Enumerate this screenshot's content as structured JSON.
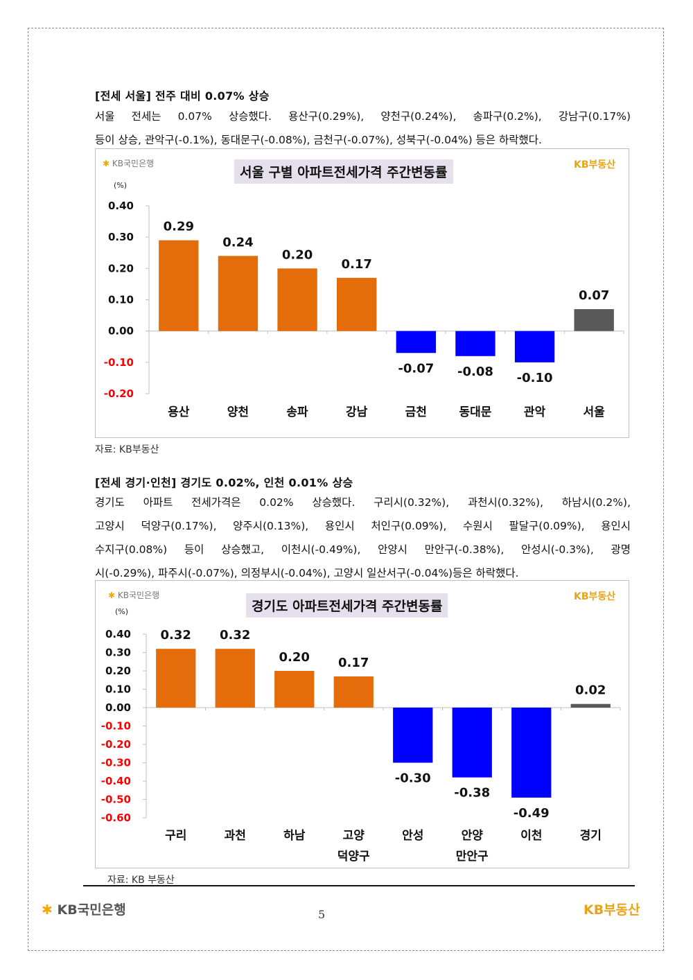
{
  "seoul": {
    "heading": "[전세 서울] 전주 대비 0.07% 상승",
    "lines": [
      "서울 전세는 0.07% 상승했다. 용산구(0.29%), 양천구(0.24%), 송파구(0.2%), 강남구(0.17%)",
      "등이 상승, 관악구(-0.1%), 동대문구(-0.08%), 금천구(-0.07%), 성북구(-0.04%) 등은 하락했다."
    ],
    "source": "자료: KB부동산"
  },
  "gyeonggi": {
    "heading": "[전세 경기·인천] 경기도 0.02%, 인천 0.01% 상승",
    "lines": [
      "경기도 아파트 전세가격은 0.02% 상승했다. 구리시(0.32%), 과천시(0.32%), 하남시(0.2%),",
      "고양시 덕양구(0.17%), 양주시(0.13%), 용인시 처인구(0.09%), 수원시 팔달구(0.09%), 용인시",
      "수지구(0.08%) 등이 상승했고, 이천시(-0.49%), 안양시 만안구(-0.38%), 안성시(-0.3%), 광명",
      "시(-0.29%), 파주시(-0.07%), 의정부시(-0.04%), 고양시 일산서구(-0.04%)등은 하락했다."
    ],
    "source": "자료: KB 부동산"
  },
  "chart_logos": {
    "bank_star": "✱",
    "bank": "KB국민은행",
    "land": "KB부동산"
  },
  "chart_data": [
    {
      "type": "bar",
      "title": "서울 구별 아파트전세가격 주간변동률",
      "unit_label": "(%)",
      "categories": [
        "용산",
        "양천",
        "송파",
        "강남",
        "금천",
        "동대문",
        "관악",
        "서울"
      ],
      "values": [
        0.29,
        0.24,
        0.2,
        0.17,
        -0.07,
        -0.08,
        -0.1,
        0.07
      ],
      "value_labels": [
        "0.29",
        "0.24",
        "0.20",
        "0.17",
        "-0.07",
        "-0.08",
        "-0.10",
        "0.07"
      ],
      "ylim": [
        -0.2,
        0.4
      ],
      "yticks": [
        "0.40",
        "0.30",
        "0.20",
        "0.10",
        "0.00",
        "-0.10",
        "-0.20"
      ],
      "colors": {
        "positive": "#e46c0a",
        "negative": "#0000ff",
        "total": "#595959",
        "neg_tick": "#ff0000"
      },
      "grid": false
    },
    {
      "type": "bar",
      "title": "경기도 아파트전세가격 주간변동률",
      "unit_label": "(%)",
      "categories": [
        "구리",
        "과천",
        "하남",
        "고양\n덕양구",
        "안성",
        "안양\n만안구",
        "이천",
        "경기"
      ],
      "values": [
        0.32,
        0.32,
        0.2,
        0.17,
        -0.3,
        -0.38,
        -0.49,
        0.02
      ],
      "value_labels": [
        "0.32",
        "0.32",
        "0.20",
        "0.17",
        "-0.30",
        "-0.38",
        "-0.49",
        "0.02"
      ],
      "ylim": [
        -0.6,
        0.4
      ],
      "yticks": [
        "0.40",
        "0.30",
        "0.20",
        "0.10",
        "0.00",
        "-0.10",
        "-0.20",
        "-0.30",
        "-0.40",
        "-0.50",
        "-0.60"
      ],
      "colors": {
        "positive": "#e46c0a",
        "negative": "#0000ff",
        "total": "#595959",
        "neg_tick": "#ff0000"
      },
      "grid": false
    }
  ],
  "footer": {
    "bank_star": "✱",
    "bank": "KB국민은행",
    "page": "5",
    "land": "KB부동산"
  }
}
